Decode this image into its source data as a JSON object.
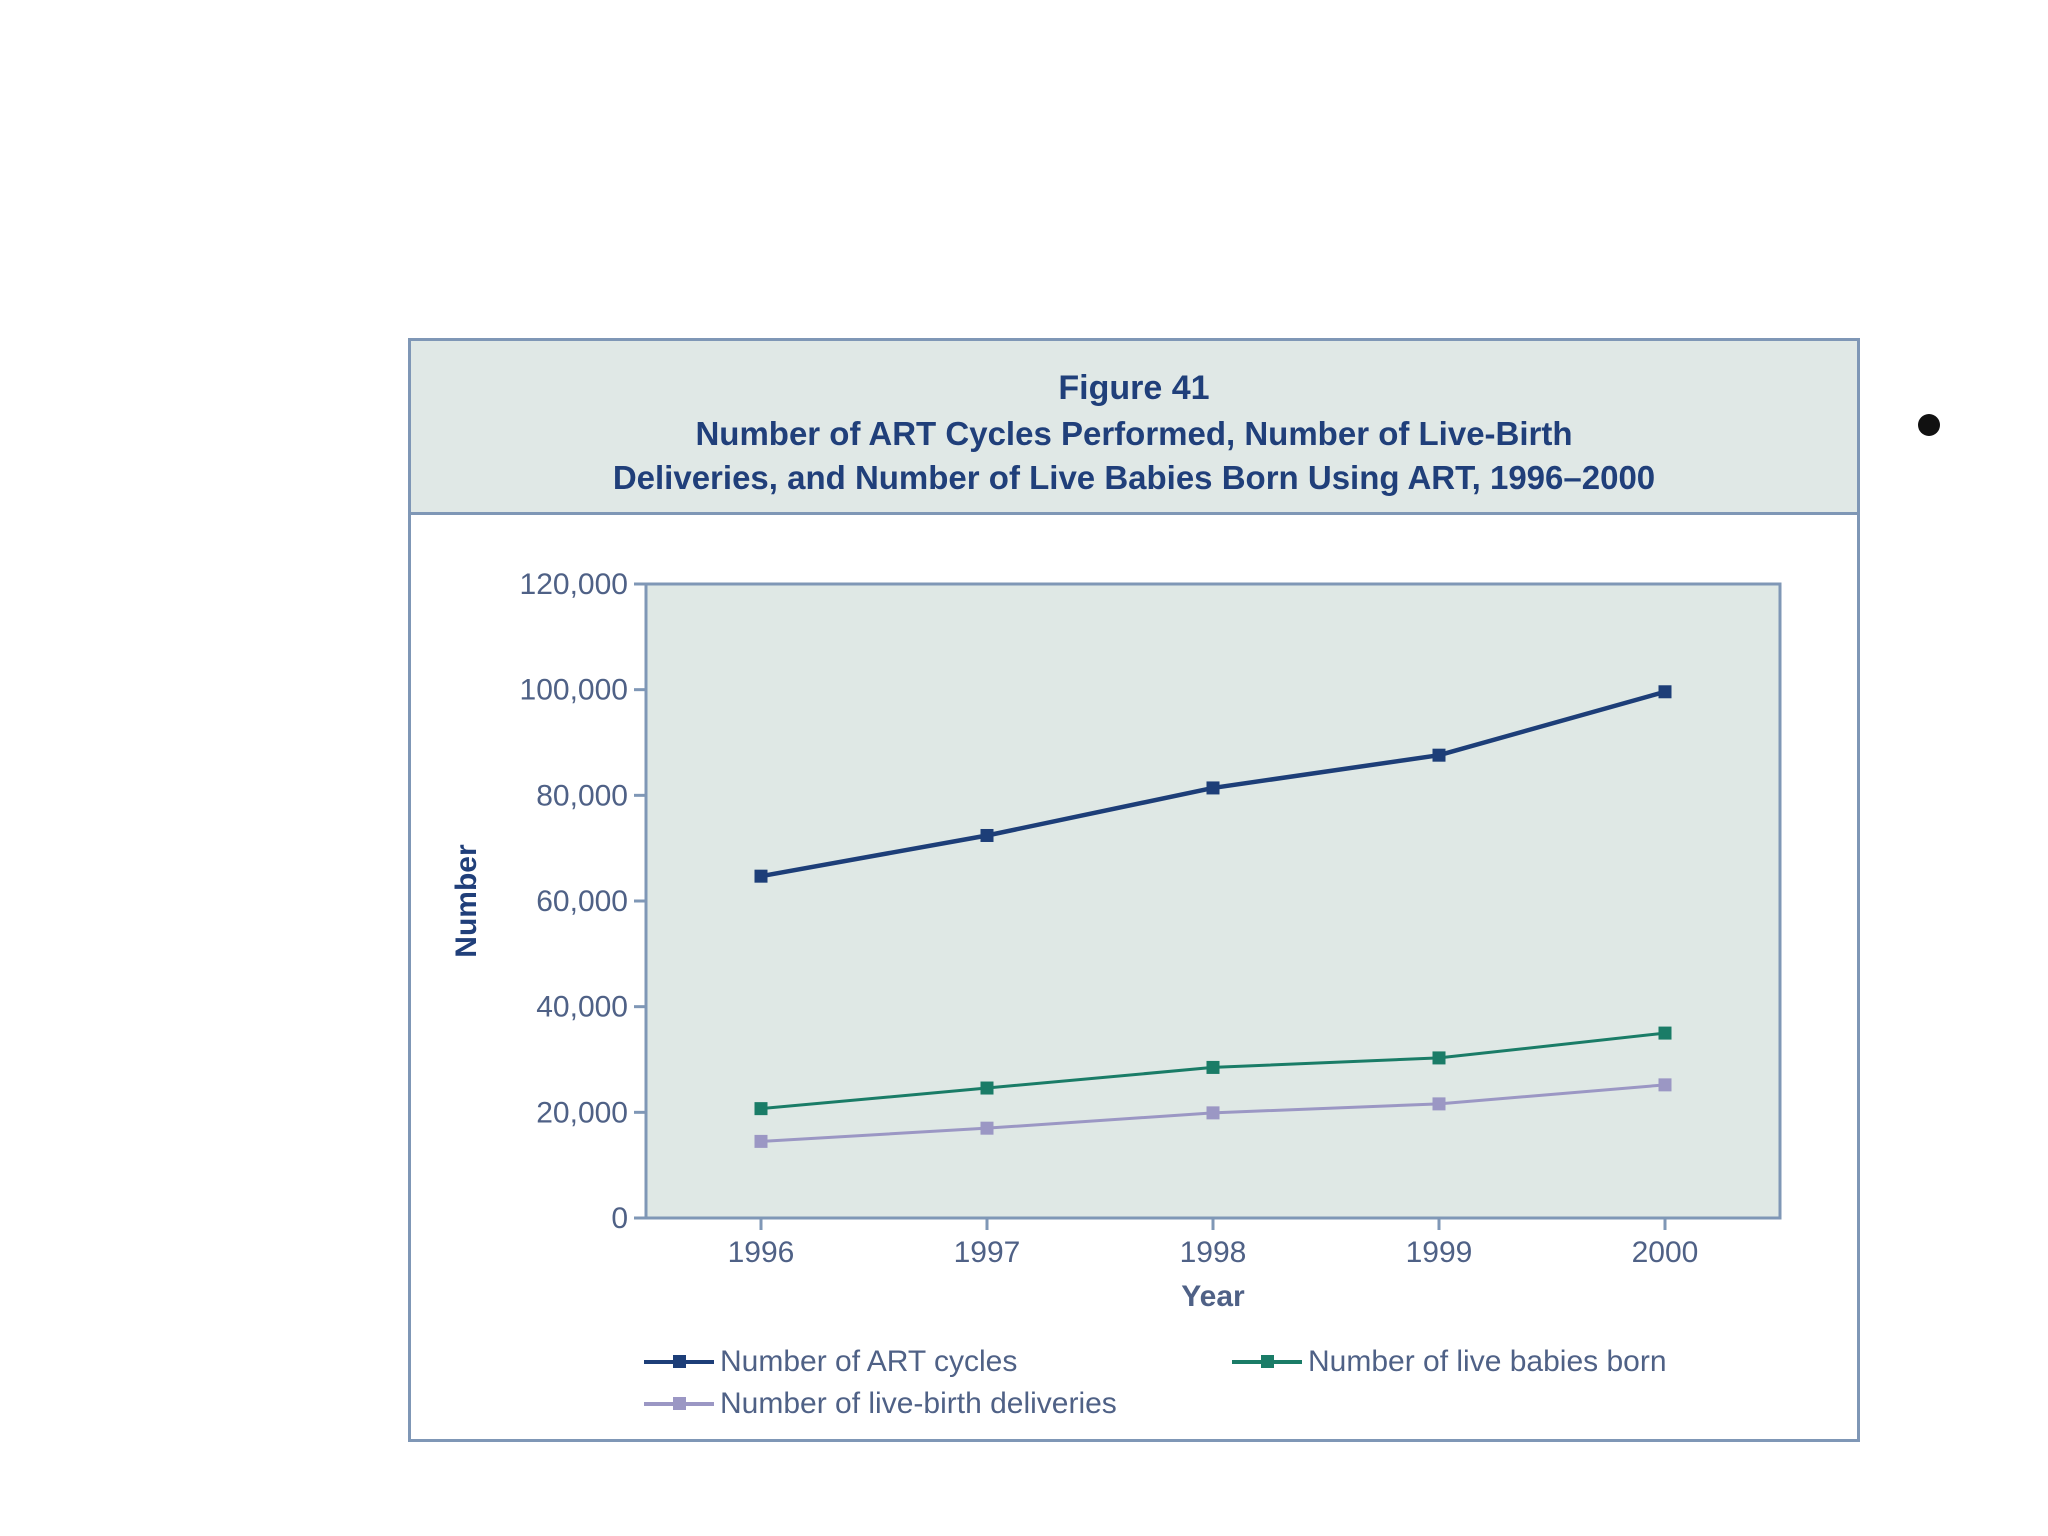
{
  "figure": {
    "number": "Figure 41",
    "title_line1": "Number of ART Cycles Performed, Number of Live-Birth",
    "title_line2": "Deliveries, and Number of Live Babies Born Using ART, 1996–2000"
  },
  "colors": {
    "header_bg": "#e0e8e6",
    "plot_bg": "#dfe8e5",
    "border": "#7f97b6",
    "title_text": "#203f7a",
    "axis_text": "#4f6186"
  },
  "chart_data": {
    "type": "line",
    "x": [
      "1996",
      "1997",
      "1998",
      "1999",
      "2000"
    ],
    "xlabel": "Year",
    "ylabel": "Number",
    "ylim": [
      0,
      120000
    ],
    "yticks": [
      0,
      20000,
      40000,
      60000,
      80000,
      100000,
      120000
    ],
    "ytick_labels": [
      "0",
      "20,000",
      "40,000",
      "60,000",
      "80,000",
      "100,000",
      "120,000"
    ],
    "grid": false,
    "legend_position": "bottom",
    "series": [
      {
        "name": "Number of ART  cycles",
        "values": [
          64700,
          72400,
          81400,
          87600,
          99600
        ],
        "color": "#1d3e78"
      },
      {
        "name": "Number of live babies born",
        "values": [
          20700,
          24600,
          28500,
          30300,
          35000
        ],
        "color": "#1a7c67"
      },
      {
        "name": "Number of live-birth deliveries",
        "values": [
          14500,
          17000,
          19900,
          21600,
          25200
        ],
        "color": "#9b97c4"
      }
    ]
  }
}
